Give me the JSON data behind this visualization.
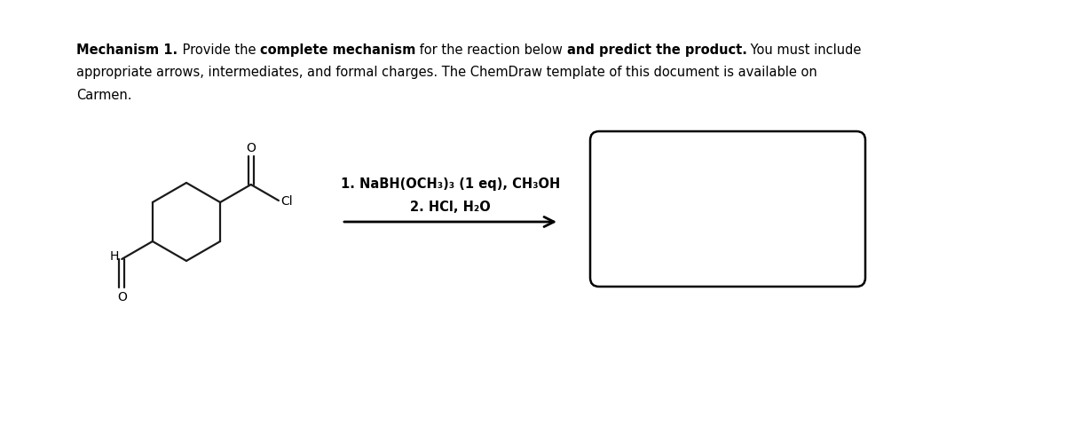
{
  "title_line2": "appropriate arrows, intermediates, and formal charges. The ChemDraw template of this document is available on",
  "title_line3": "Carmen.",
  "reagent_line1": "1. NaBH(OCH₃)₃ (1 eq), CH₃OH",
  "reagent_line2": "2. HCl, H₂O",
  "bg_color": "#ffffff",
  "text_color": "#000000",
  "box_color": "#000000",
  "font_size_title": 10.5,
  "font_size_reagent": 10.5,
  "line1_segments": [
    [
      "Mechanism 1.",
      true
    ],
    [
      " Provide the ",
      false
    ],
    [
      "complete mechanism",
      true
    ],
    [
      " for the reaction below ",
      false
    ],
    [
      "and predict the product.",
      true
    ],
    [
      " You must include",
      false
    ]
  ]
}
